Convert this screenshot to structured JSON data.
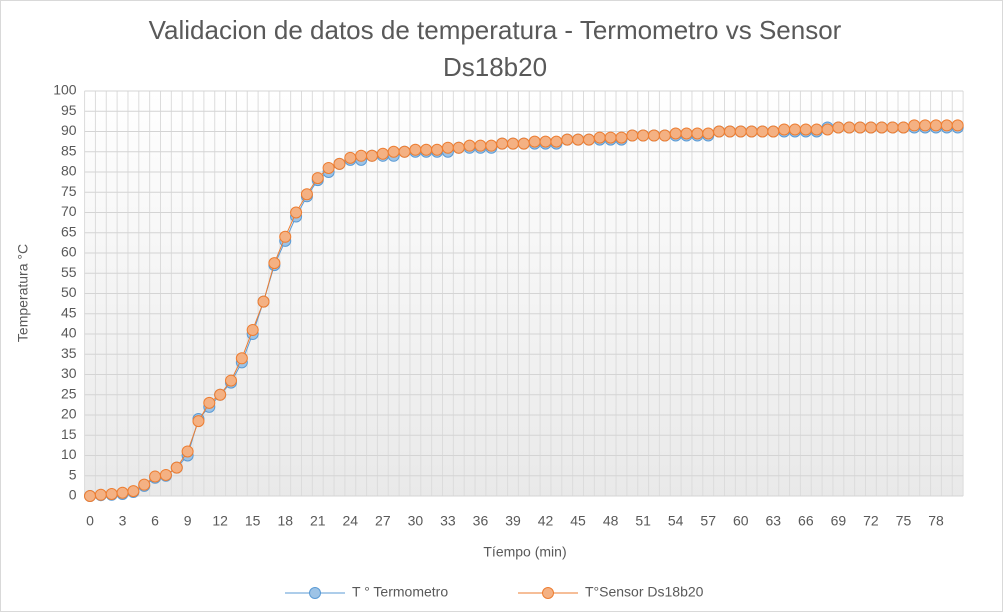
{
  "chart_data": {
    "type": "line",
    "title": "Validacion de datos de temperatura - Termometro vs Sensor Ds18b20",
    "xlabel": "Tíempo (min)",
    "ylabel": "Temperatura °C",
    "categories": [
      0,
      null,
      null,
      3,
      null,
      null,
      6,
      null,
      null,
      9,
      null,
      null,
      12,
      null,
      null,
      15,
      null,
      null,
      18,
      null,
      null,
      21,
      null,
      null,
      24,
      null,
      null,
      27,
      null,
      null,
      30,
      null,
      null,
      33,
      null,
      null,
      36,
      null,
      null,
      39,
      null,
      null,
      42,
      null,
      null,
      45,
      null,
      null,
      48,
      null,
      null,
      51,
      null,
      null,
      54,
      null,
      null,
      57,
      null,
      null,
      60,
      null,
      null,
      63,
      null,
      null,
      66,
      null,
      null,
      69,
      null,
      null,
      72,
      null,
      null,
      75,
      null,
      null,
      78,
      null,
      null
    ],
    "series": [
      {
        "name": "T ° Termometro",
        "color": "#5b9bd5",
        "fill": "#9dc3e6",
        "values": [
          0,
          0.2,
          0.3,
          0.5,
          1,
          2.5,
          4.5,
          5,
          7,
          10,
          19,
          22,
          25,
          28,
          33,
          40,
          48,
          57,
          63,
          69,
          74,
          78,
          80,
          82,
          83,
          83,
          84,
          84,
          84,
          85,
          85,
          85,
          85,
          85,
          86,
          86,
          86,
          86,
          87,
          87,
          87,
          87,
          87,
          87,
          88,
          88,
          88,
          88,
          88,
          88,
          89,
          89,
          89,
          89,
          89,
          89,
          89,
          89,
          90,
          90,
          90,
          90,
          90,
          90,
          90,
          90,
          90,
          90,
          91,
          91,
          91,
          91,
          91,
          91,
          91,
          91,
          91,
          91,
          91,
          91,
          91
        ]
      },
      {
        "name": "T°Sensor Ds18b20",
        "color": "#ed7d31",
        "fill": "#f4b183",
        "values": [
          0,
          0.3,
          0.5,
          0.8,
          1.2,
          2.8,
          4.8,
          5.2,
          7,
          11,
          18.5,
          23,
          25,
          28.5,
          34,
          41,
          48,
          57.5,
          64,
          70,
          74.5,
          78.5,
          81,
          82,
          83.5,
          84,
          84,
          84.5,
          85,
          85,
          85.5,
          85.5,
          85.5,
          86,
          86,
          86.5,
          86.5,
          86.5,
          87,
          87,
          87,
          87.5,
          87.5,
          87.5,
          88,
          88,
          88,
          88.5,
          88.5,
          88.5,
          89,
          89,
          89,
          89,
          89.5,
          89.5,
          89.5,
          89.5,
          90,
          90,
          90,
          90,
          90,
          90,
          90.5,
          90.5,
          90.5,
          90.5,
          90.5,
          91,
          91,
          91,
          91,
          91,
          91,
          91,
          91.5,
          91.5,
          91.5,
          91.5,
          91.5
        ]
      }
    ],
    "ylim": [
      0,
      100
    ],
    "yticks": [
      0,
      5,
      10,
      15,
      20,
      25,
      30,
      35,
      40,
      45,
      50,
      55,
      60,
      65,
      70,
      75,
      80,
      85,
      90,
      95,
      100
    ],
    "grid": true,
    "legend": "bottom"
  }
}
